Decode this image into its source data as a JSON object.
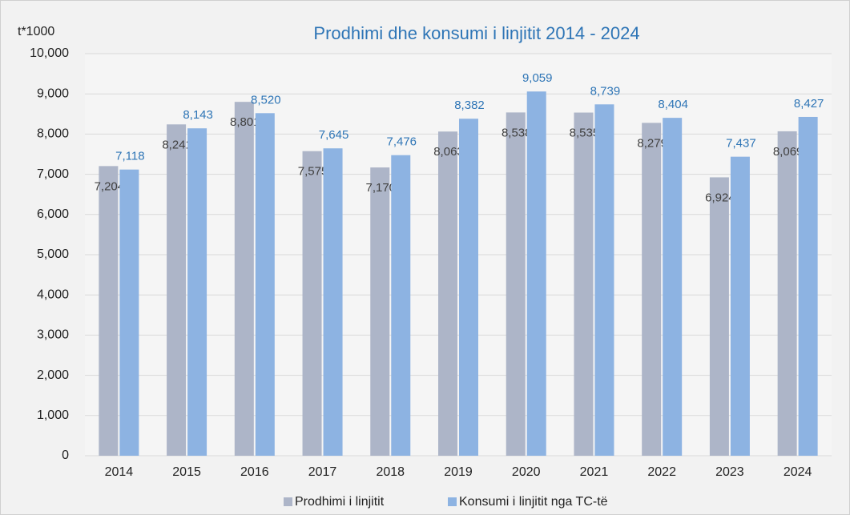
{
  "chart_data": {
    "type": "bar",
    "title": "Prodhimi dhe konsumi i linjitit 2014 - 2024",
    "y_axis_label": "t*1000",
    "categories": [
      "2014",
      "2015",
      "2016",
      "2017",
      "2018",
      "2019",
      "2020",
      "2021",
      "2022",
      "2023",
      "2024"
    ],
    "series": [
      {
        "name": "Prodhimi i linjitit",
        "color": "#adb5c8",
        "label_color": "#404040",
        "values": [
          7204,
          8241,
          8801,
          7575,
          7170,
          8063,
          8538,
          8535,
          8279,
          6924,
          8069
        ],
        "value_labels": [
          "7,204",
          "8,241",
          "8,801",
          "7,575",
          "7,170",
          "8,063",
          "8,538",
          "8,535",
          "8,279",
          "6,924",
          "8,069"
        ]
      },
      {
        "name": "Konsumi i linjitit nga TC-të",
        "color": "#8db3e2",
        "label_color": "#2e75b6",
        "values": [
          7118,
          8143,
          8520,
          7645,
          7476,
          8382,
          9059,
          8739,
          8404,
          7437,
          8427
        ],
        "value_labels": [
          "7,118",
          "8,143",
          "8,520",
          "7,645",
          "7,476",
          "8,382",
          "9,059",
          "8,739",
          "8,404",
          "7,437",
          "8,427"
        ]
      }
    ],
    "ylim": [
      0,
      10000
    ],
    "yticks": [
      0,
      {
        "value": 1000,
        "label": "1,000"
      },
      {
        "value": 2000,
        "label": "2,000"
      },
      {
        "value": 3000,
        "label": "3,000"
      },
      {
        "value": 4000,
        "label": "4,000"
      },
      {
        "value": 5000,
        "label": "5,000"
      },
      {
        "value": 6000,
        "label": "6,000"
      },
      {
        "value": 7000,
        "label": "7,000"
      },
      {
        "value": 8000,
        "label": "8,000"
      },
      {
        "value": 9000,
        "label": "9,000"
      },
      {
        "value": 10000,
        "label": "10,000"
      }
    ],
    "grid": true,
    "legend": "bottom"
  }
}
